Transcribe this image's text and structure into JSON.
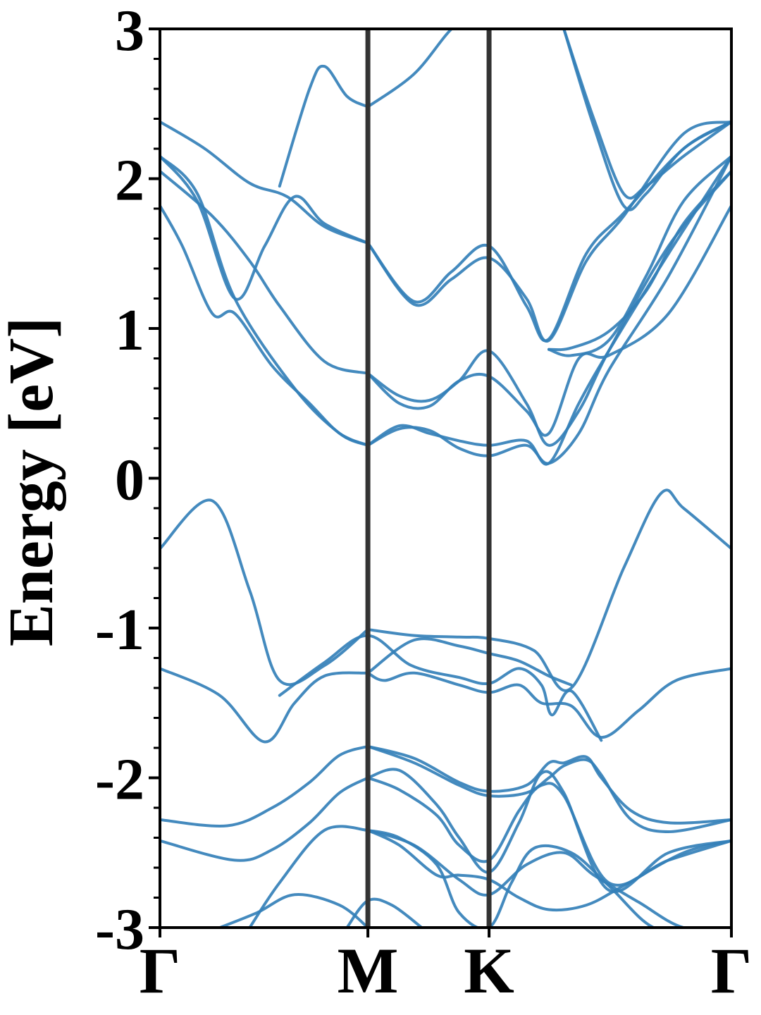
{
  "chart_data": {
    "type": "line",
    "title": "",
    "xlabel": "",
    "ylabel": "Energy [eV]",
    "ylim": [
      -3,
      3
    ],
    "xlim": [
      0,
      3.82
    ],
    "grid": false,
    "line_color": "#3480b9",
    "divider_color": "#333333",
    "high_symmetry_points": [
      {
        "label": "Γ",
        "x": 0
      },
      {
        "label": "M",
        "x": 1.39
      },
      {
        "label": "K",
        "x": 2.2
      },
      {
        "label": "Γ",
        "x": 3.82
      }
    ],
    "yticks": [
      {
        "value": 3,
        "label": "3"
      },
      {
        "value": 2,
        "label": "2"
      },
      {
        "value": 1,
        "label": "1"
      },
      {
        "value": 0,
        "label": "0"
      },
      {
        "value": -1,
        "label": "-1"
      },
      {
        "value": -2,
        "label": "-2"
      },
      {
        "value": -3,
        "label": "-3"
      }
    ],
    "series": [
      {
        "x": [
          0,
          0.35,
          0.6,
          0.8,
          1.1,
          1.39
        ],
        "y": [
          -0.47,
          -0.15,
          -0.75,
          -1.35,
          -1.25,
          -1.01
        ]
      },
      {
        "x": [
          1.39,
          1.7,
          2.0,
          2.2,
          2.5,
          2.75,
          3.1,
          3.35,
          3.5,
          3.82
        ],
        "y": [
          -1.01,
          -1.05,
          -1.06,
          -1.07,
          -1.15,
          -1.4,
          -0.6,
          -0.1,
          -0.2,
          -0.47
        ]
      },
      {
        "x": [
          0,
          0.4,
          0.7,
          0.9,
          1.1,
          1.39
        ],
        "y": [
          -1.27,
          -1.45,
          -1.76,
          -1.5,
          -1.32,
          -1.3
        ]
      },
      {
        "x": [
          1.39,
          1.5,
          1.7,
          2.0,
          2.2,
          2.4,
          2.55,
          2.75,
          2.95,
          3.2,
          3.45,
          3.82
        ],
        "y": [
          -1.3,
          -1.35,
          -1.3,
          -1.38,
          -1.43,
          -1.38,
          -1.5,
          -1.52,
          -1.73,
          -1.55,
          -1.35,
          -1.27
        ]
      },
      {
        "x": [
          0.8,
          1.1,
          1.39,
          1.68,
          2.0,
          2.2,
          2.4,
          2.55,
          2.62,
          2.75,
          2.95
        ],
        "y": [
          -1.45,
          -1.23,
          -1.05,
          -1.25,
          -1.33,
          -1.37,
          -1.27,
          -1.38,
          -1.58,
          -1.42,
          -1.75
        ]
      },
      {
        "x": [
          1.39,
          1.7,
          2.0,
          2.2,
          2.4,
          2.6,
          2.75
        ],
        "y": [
          -1.3,
          -1.08,
          -1.12,
          -1.17,
          -1.22,
          -1.32,
          -1.38
        ]
      },
      {
        "x": [
          0,
          0.45,
          0.75,
          1.0,
          1.2,
          1.39
        ],
        "y": [
          -2.28,
          -2.32,
          -2.2,
          -2.03,
          -1.85,
          -1.79
        ]
      },
      {
        "x": [
          1.39,
          1.7,
          2.0,
          2.2,
          2.45,
          2.6,
          2.7,
          2.85,
          2.95,
          3.15,
          3.4,
          3.82
        ],
        "y": [
          -1.79,
          -1.87,
          -2.03,
          -2.09,
          -2.05,
          -1.9,
          -1.9,
          -1.86,
          -2.0,
          -2.22,
          -2.3,
          -2.28
        ]
      },
      {
        "x": [
          1.39,
          1.7,
          2.0,
          2.2,
          2.45,
          2.6,
          2.7,
          2.85,
          2.95,
          3.15,
          3.4,
          3.82
        ],
        "y": [
          -1.79,
          -1.9,
          -2.05,
          -2.12,
          -2.1,
          -2.0,
          -1.92,
          -1.88,
          -1.98,
          -2.28,
          -2.36,
          -2.28
        ]
      },
      {
        "x": [
          0,
          0.5,
          0.75,
          1.0,
          1.2,
          1.39
        ],
        "y": [
          -2.42,
          -2.55,
          -2.48,
          -2.3,
          -2.1,
          -2.0
        ]
      },
      {
        "x": [
          1.39,
          1.6,
          1.85,
          2.0,
          2.2,
          2.4,
          2.55,
          2.7,
          3.0,
          3.4,
          3.82
        ],
        "y": [
          -2.0,
          -1.95,
          -2.18,
          -2.4,
          -2.63,
          -2.3,
          -1.97,
          -2.1,
          -2.75,
          -2.5,
          -2.42
        ]
      },
      {
        "x": [
          1.39,
          1.6,
          1.85,
          2.0,
          2.2,
          2.4,
          2.55,
          2.7,
          3.0,
          3.4,
          3.82
        ],
        "y": [
          -2.0,
          -2.08,
          -2.25,
          -2.45,
          -2.55,
          -2.22,
          -2.05,
          -2.12,
          -2.7,
          -2.55,
          -2.42
        ]
      },
      {
        "x": [
          0.6,
          0.8,
          1.1,
          1.39
        ],
        "y": [
          -3.0,
          -2.7,
          -2.35,
          -2.35
        ]
      },
      {
        "x": [
          1.39,
          1.7,
          2.0,
          2.2,
          2.45,
          2.7,
          2.9,
          3.2,
          3.5,
          3.82
        ],
        "y": [
          -2.35,
          -2.45,
          -2.68,
          -2.78,
          -2.58,
          -2.5,
          -2.65,
          -2.83,
          -3.0,
          -3.0
        ]
      },
      {
        "x": [
          1.39,
          1.6,
          1.85,
          2.0,
          2.2,
          2.35,
          2.5,
          2.75,
          3.0,
          3.3,
          3.6
        ],
        "y": [
          -2.35,
          -2.4,
          -2.58,
          -2.9,
          -3.0,
          -2.7,
          -2.47,
          -2.5,
          -2.72,
          -3.0,
          -3.0
        ]
      },
      {
        "x": [
          0.4,
          0.65,
          0.9,
          1.2,
          1.39
        ],
        "y": [
          -3.0,
          -2.9,
          -2.78,
          -2.85,
          -3.0
        ]
      },
      {
        "x": [
          1.25,
          1.39,
          1.55,
          1.75
        ],
        "y": [
          -3.0,
          -2.82,
          -2.85,
          -3.0
        ]
      },
      {
        "x": [
          1.39,
          1.6,
          1.85,
          2.0,
          2.2,
          2.4,
          2.6,
          2.85,
          3.1,
          3.5,
          3.82
        ],
        "y": [
          -2.35,
          -2.45,
          -2.65,
          -2.65,
          -2.68,
          -2.8,
          -2.88,
          -2.85,
          -2.72,
          -2.5,
          -2.42
        ]
      },
      {
        "x": [
          0,
          0.35,
          0.6,
          0.8,
          1.1,
          1.39
        ],
        "y": [
          2.05,
          1.75,
          1.45,
          1.15,
          0.78,
          0.7
        ]
      },
      {
        "x": [
          1.39,
          1.6,
          1.8,
          2.0,
          2.2,
          2.45,
          2.6,
          2.8,
          3.0,
          3.4,
          3.82
        ],
        "y": [
          0.7,
          0.55,
          0.52,
          0.65,
          0.85,
          0.5,
          0.22,
          0.45,
          0.85,
          1.55,
          2.05
        ]
      },
      {
        "x": [
          0,
          0.25,
          0.5,
          0.9,
          1.2,
          1.39
        ],
        "y": [
          2.15,
          1.9,
          1.2,
          0.6,
          0.3,
          0.22
        ]
      },
      {
        "x": [
          1.39,
          1.6,
          1.8,
          2.0,
          2.2,
          2.45,
          2.6,
          2.8,
          3.0,
          3.4,
          3.82
        ],
        "y": [
          0.22,
          0.33,
          0.32,
          0.2,
          0.15,
          0.22,
          0.1,
          0.3,
          0.72,
          1.35,
          2.15
        ]
      },
      {
        "x": [
          1.39,
          1.6,
          1.8,
          2.0,
          2.2,
          2.45,
          2.6,
          2.8,
          3.0,
          3.4,
          3.82
        ],
        "y": [
          0.22,
          0.35,
          0.3,
          0.25,
          0.22,
          0.25,
          0.1,
          0.5,
          0.85,
          1.5,
          2.15
        ]
      },
      {
        "x": [
          1.39,
          1.6,
          1.8,
          2.0,
          2.2,
          2.45,
          2.6,
          2.8,
          3.0,
          3.4,
          3.82
        ],
        "y": [
          0.7,
          0.5,
          0.48,
          0.65,
          0.68,
          0.45,
          0.3,
          0.8,
          0.82,
          1.1,
          1.82
        ]
      },
      {
        "x": [
          0,
          0.15,
          0.35,
          0.5,
          0.75,
          1.0,
          1.2,
          1.39
        ],
        "y": [
          1.82,
          1.55,
          1.1,
          1.1,
          0.75,
          0.5,
          0.3,
          0.22
        ]
      },
      {
        "x": [
          0,
          0.3,
          0.6,
          0.85,
          1.1,
          1.39
        ],
        "y": [
          2.38,
          2.2,
          1.97,
          1.88,
          1.68,
          1.57
        ]
      },
      {
        "x": [
          1.39,
          1.7,
          1.95,
          2.2,
          2.45,
          2.6,
          2.85,
          3.1,
          3.5,
          3.82
        ],
        "y": [
          1.57,
          1.18,
          1.38,
          1.55,
          1.15,
          0.93,
          1.5,
          1.77,
          2.2,
          2.38
        ]
      },
      {
        "x": [
          1.39,
          1.7,
          1.95,
          2.2,
          2.45,
          2.6,
          2.85,
          3.1,
          3.5,
          3.82
        ],
        "y": [
          1.57,
          1.16,
          1.33,
          1.47,
          1.2,
          0.92,
          1.45,
          1.75,
          2.3,
          2.38
        ]
      },
      {
        "x": [
          0,
          0.25,
          0.5,
          0.7,
          0.9,
          1.1,
          1.39
        ],
        "y": [
          2.15,
          1.85,
          1.2,
          1.55,
          1.88,
          1.7,
          1.57
        ]
      },
      {
        "x": [
          0.8,
          1.0,
          1.1,
          1.25,
          1.39
        ],
        "y": [
          1.95,
          2.6,
          2.75,
          2.55,
          2.48
        ]
      },
      {
        "x": [
          1.39,
          1.7,
          1.95,
          2.05
        ],
        "y": [
          2.48,
          2.7,
          3.0,
          3.0
        ]
      },
      {
        "x": [
          2.7,
          2.9,
          3.1,
          3.25,
          3.5,
          3.82
        ],
        "y": [
          3.0,
          2.4,
          1.9,
          1.95,
          2.15,
          2.38
        ]
      },
      {
        "x": [
          2.7,
          2.9,
          3.1,
          3.25,
          3.5,
          3.82
        ],
        "y": [
          3.0,
          2.35,
          1.82,
          1.9,
          2.2,
          2.38
        ]
      },
      {
        "x": [
          2.6,
          2.75,
          3.0,
          3.25,
          3.5,
          3.82
        ],
        "y": [
          0.86,
          0.87,
          0.98,
          1.25,
          1.7,
          2.05
        ]
      },
      {
        "x": [
          2.6,
          2.75,
          3.0,
          3.25,
          3.5,
          3.82
        ],
        "y": [
          0.86,
          0.82,
          0.92,
          1.35,
          1.85,
          2.15
        ]
      }
    ]
  }
}
